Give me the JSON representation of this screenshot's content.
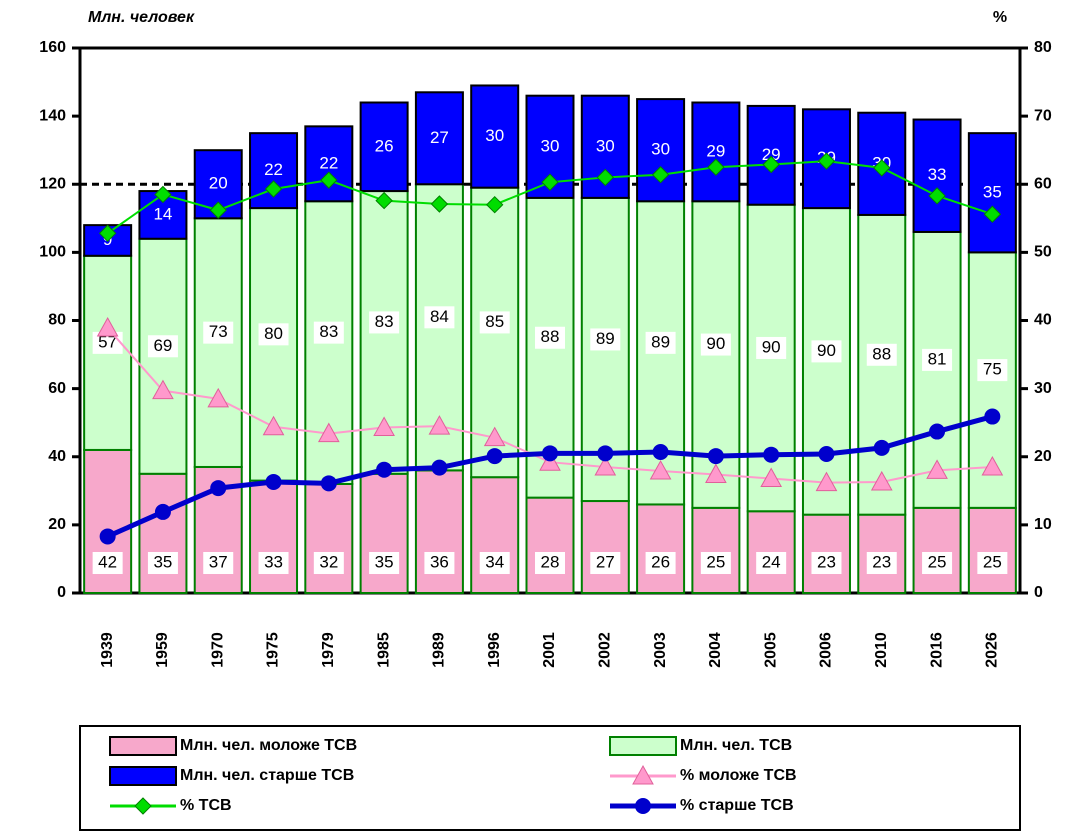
{
  "chart_data": {
    "type": "stacked_bar_line",
    "y_label": "Млн. человек",
    "y2_label": "%",
    "categories": [
      "1939",
      "1959",
      "1970",
      "1975",
      "1979",
      "1985",
      "1989",
      "1996",
      "2001",
      "2002",
      "2003",
      "2004",
      "2005",
      "2006",
      "2010",
      "2016",
      "2026"
    ],
    "ylim": [
      0,
      160
    ],
    "yticks": [
      0,
      20,
      40,
      60,
      80,
      100,
      120,
      140,
      160
    ],
    "y2lim": [
      0,
      80
    ],
    "y2ticks": [
      0,
      10,
      20,
      30,
      40,
      50,
      60,
      70,
      80
    ],
    "reference_line": 120,
    "series": [
      {
        "name": "Млн. чел. моложе ТСВ",
        "kind": "bar",
        "color": "#f7a8cb",
        "values": [
          42,
          35,
          37,
          33,
          32,
          35,
          36,
          34,
          28,
          27,
          26,
          25,
          24,
          23,
          23,
          25,
          25
        ]
      },
      {
        "name": "Млн. чел. ТСВ",
        "kind": "bar",
        "color": "#ccffcc",
        "values": [
          57,
          69,
          73,
          80,
          83,
          83,
          84,
          85,
          88,
          89,
          89,
          90,
          90,
          90,
          88,
          81,
          75
        ]
      },
      {
        "name": "Млн. чел. старше ТСВ",
        "kind": "bar",
        "color": "#0000ff",
        "values": [
          9,
          14,
          20,
          22,
          22,
          26,
          27,
          30,
          30,
          30,
          30,
          29,
          29,
          29,
          30,
          33,
          35
        ]
      },
      {
        "name": "% моложе ТСВ",
        "kind": "line",
        "axis": "y2",
        "marker": "triangle",
        "color": "#ff99cc",
        "values": [
          38.9,
          29.7,
          28.5,
          24.4,
          23.4,
          24.3,
          24.5,
          22.8,
          19.2,
          18.5,
          17.9,
          17.4,
          16.8,
          16.2,
          16.3,
          18.0,
          18.5
        ]
      },
      {
        "name": "% ТСВ",
        "kind": "line",
        "axis": "y2",
        "marker": "diamond",
        "color": "#00dd00",
        "values": [
          52.8,
          58.5,
          56.2,
          59.3,
          60.6,
          57.6,
          57.1,
          57.0,
          60.3,
          61.0,
          61.4,
          62.5,
          62.9,
          63.4,
          62.4,
          58.3,
          55.6
        ]
      },
      {
        "name": "% старше ТСВ",
        "kind": "line",
        "axis": "y2",
        "marker": "circle",
        "color": "#0000cc",
        "values": [
          8.3,
          11.9,
          15.4,
          16.3,
          16.1,
          18.1,
          18.4,
          20.1,
          20.5,
          20.5,
          20.7,
          20.1,
          20.3,
          20.4,
          21.3,
          23.7,
          25.9
        ]
      }
    ]
  }
}
